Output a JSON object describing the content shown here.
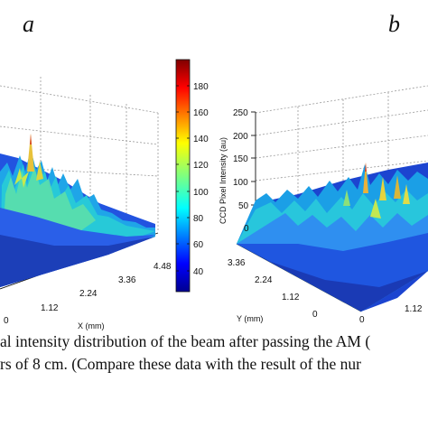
{
  "panels": {
    "a": {
      "letter": "a",
      "x_axis": {
        "label": "X (mm)",
        "ticks": [
          "0",
          "1.12",
          "2.24",
          "3.36",
          "4.48"
        ]
      }
    },
    "b": {
      "letter": "b",
      "y_axis": {
        "label": "Y (mm)",
        "ticks": [
          "3.36",
          "2.24",
          "1.12",
          "0"
        ]
      },
      "x_axis": {
        "ticks": [
          "0",
          "1.12"
        ]
      },
      "z_axis": {
        "label": "CCD Pixel Intensity (au)",
        "ticks": [
          "0",
          "50",
          "100",
          "150",
          "200",
          "250"
        ]
      }
    }
  },
  "colorbar": {
    "ticks": [
      "40",
      "60",
      "80",
      "100",
      "120",
      "140",
      "160",
      "180"
    ],
    "range": [
      30,
      195
    ],
    "colormap": "jet"
  },
  "caption": {
    "line1": "al intensity distribution of the beam after passing the AM (",
    "line2": "rs of 8 cm. (Compare these data with the result of the nur"
  },
  "colors": {
    "surface_base": "#1f4fd8",
    "grid": "#9a9a9a"
  }
}
